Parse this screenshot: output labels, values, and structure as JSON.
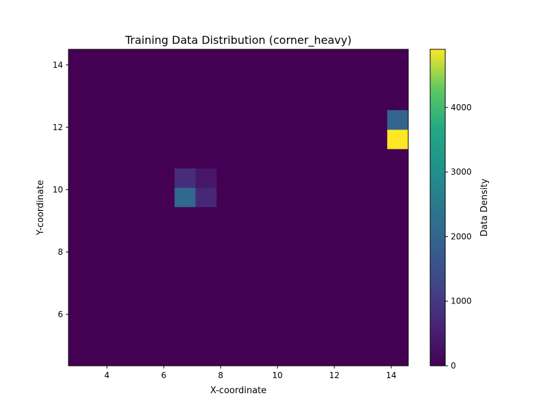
{
  "chart_data": {
    "type": "heatmap",
    "title": "Training Data Distribution (corner_heavy)",
    "xlabel": "X-coordinate",
    "ylabel": "Y-coordinate",
    "colorbar_label": "Data Density",
    "colormap": "viridis",
    "xlim": [
      2.65,
      14.6
    ],
    "ylim": [
      4.35,
      14.5
    ],
    "value_range": [
      0,
      4900
    ],
    "x_ticks": [
      4,
      6,
      8,
      10,
      12,
      14
    ],
    "y_ticks": [
      6,
      8,
      10,
      12,
      14
    ],
    "colorbar_ticks": [
      0,
      1000,
      2000,
      3000,
      4000
    ],
    "background_value": 0,
    "cells": [
      {
        "x0": 6.38,
        "x1": 7.12,
        "y0": 10.06,
        "y1": 10.68,
        "value": 800
      },
      {
        "x0": 7.12,
        "x1": 7.86,
        "y0": 10.06,
        "y1": 10.68,
        "value": 380
      },
      {
        "x0": 6.38,
        "x1": 7.12,
        "y0": 9.44,
        "y1": 10.06,
        "value": 2050
      },
      {
        "x0": 7.12,
        "x1": 7.86,
        "y0": 9.44,
        "y1": 10.06,
        "value": 680
      },
      {
        "x0": 13.86,
        "x1": 14.6,
        "y0": 11.92,
        "y1": 12.55,
        "value": 1950
      },
      {
        "x0": 13.86,
        "x1": 14.6,
        "y0": 11.3,
        "y1": 11.92,
        "value": 4900
      }
    ]
  }
}
